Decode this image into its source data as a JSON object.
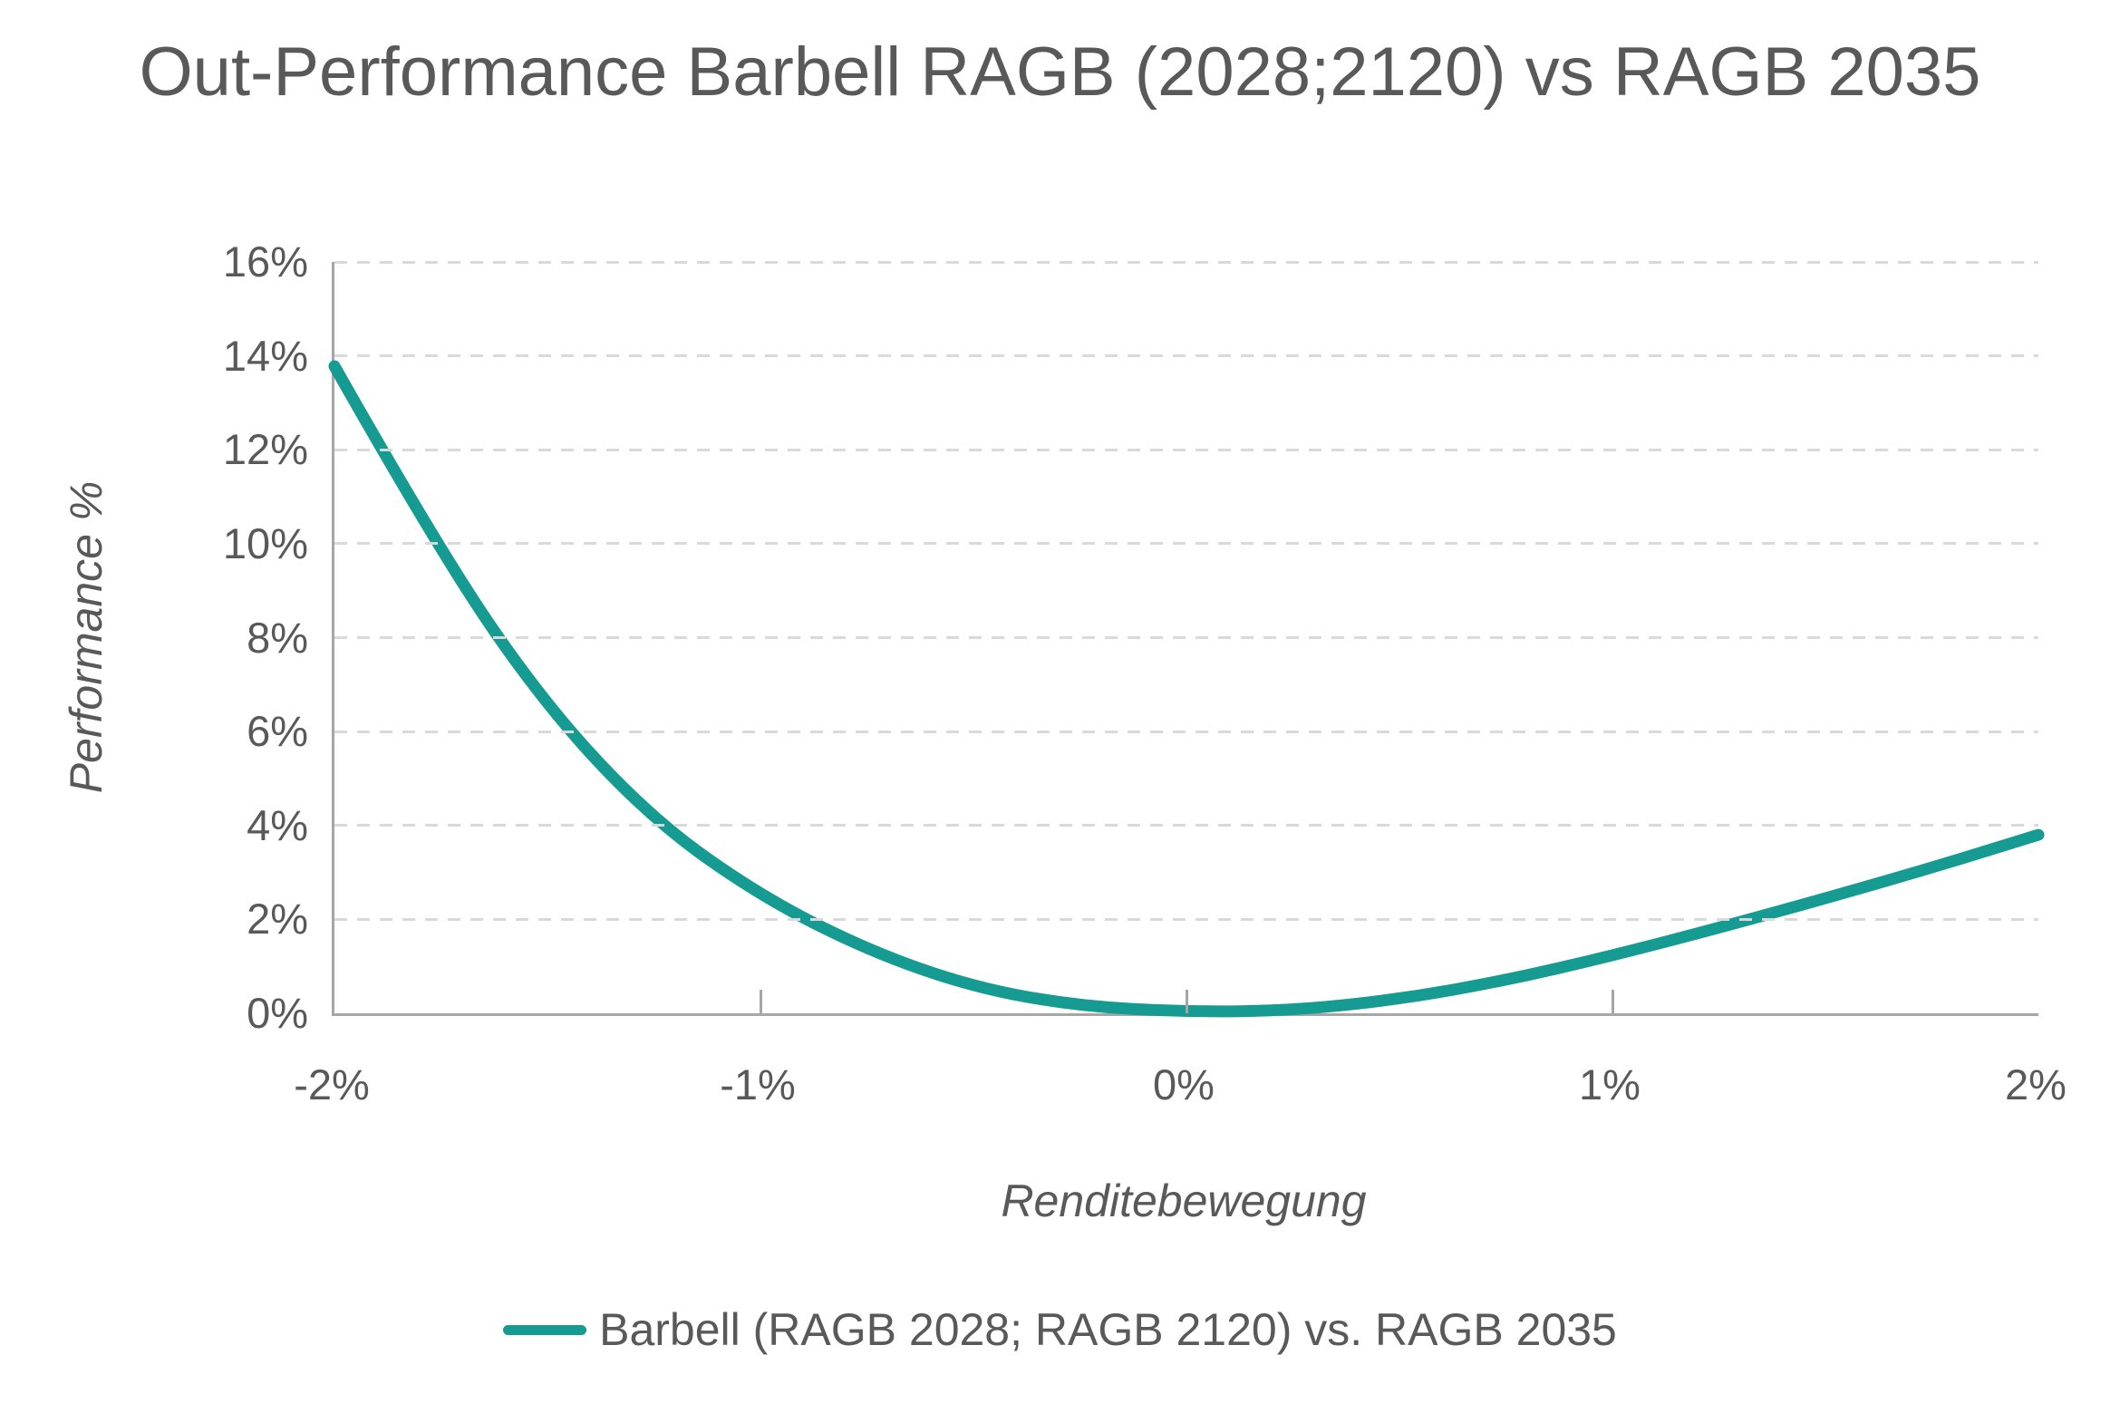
{
  "title": "Out-Performance Barbell RAGB (2028;2120) vs RAGB 2035",
  "y_axis": {
    "title": "Performance %",
    "tick_labels": [
      "0%",
      "2%",
      "4%",
      "6%",
      "8%",
      "10%",
      "12%",
      "14%",
      "16%"
    ]
  },
  "x_axis": {
    "title": "Renditebewegung",
    "tick_labels": [
      "-2%",
      "-1%",
      "0%",
      "1%",
      "2%"
    ]
  },
  "legend": {
    "label": "Barbell (RAGB 2028; RAGB 2120) vs. RAGB 2035"
  },
  "colors": {
    "line": "#169B92",
    "text": "#595959",
    "gridline": "#D9D9D9",
    "axis": "#A6A6A6"
  },
  "chart_data": {
    "type": "line",
    "title": "Out-Performance Barbell RAGB (2028;2120) vs RAGB 2035",
    "xlabel": "Renditebewegung",
    "ylabel": "Performance %",
    "xlim": [
      -2,
      2
    ],
    "ylim": [
      0,
      16
    ],
    "x_ticks": [
      -2,
      -1,
      0,
      1,
      2
    ],
    "y_ticks": [
      0,
      2,
      4,
      6,
      8,
      10,
      12,
      14,
      16
    ],
    "grid": "horizontal-dashed",
    "legend_position": "bottom",
    "series": [
      {
        "name": "Barbell (RAGB 2028; RAGB 2120) vs. RAGB 2035",
        "x": [
          -2.0,
          -1.75,
          -1.5,
          -1.25,
          -1.0,
          -0.75,
          -0.5,
          -0.25,
          0.0,
          0.25,
          0.5,
          0.75,
          1.0,
          1.25,
          1.5,
          1.75,
          2.0
        ],
        "y": [
          13.78,
          9.78,
          6.5,
          4.1,
          2.5,
          1.35,
          0.55,
          0.15,
          0.03,
          0.06,
          0.3,
          0.7,
          1.23,
          1.82,
          2.45,
          3.1,
          3.8
        ]
      }
    ]
  }
}
